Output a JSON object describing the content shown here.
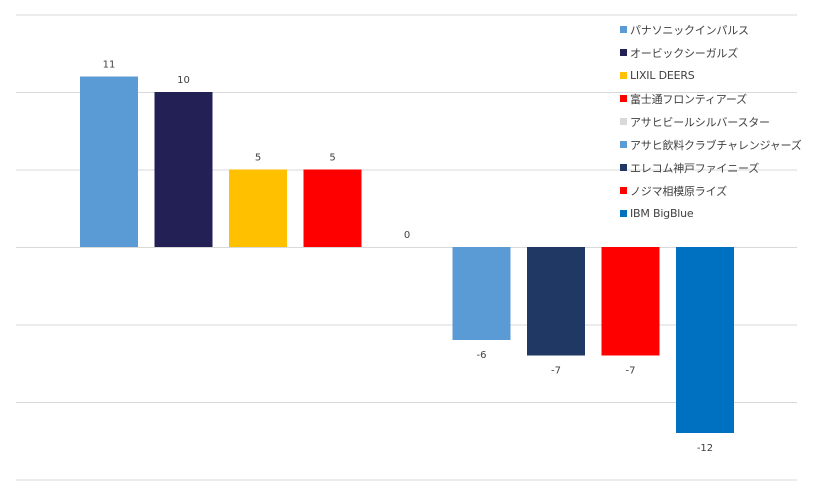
{
  "chart_data": {
    "type": "bar",
    "title": "",
    "xlabel": "",
    "ylabel": "",
    "ylim": [
      -15,
      15
    ],
    "grid": true,
    "legend_position": "top-right",
    "categories": [
      "パナソニックインパルス",
      "オービックシーガルズ",
      "LIXIL DEERS",
      "富士通フロンティアーズ",
      "アサヒビールシルバースター",
      "アサヒ飲料クラブチャレンジャーズ",
      "エレコム神戸ファイニーズ",
      "ノジマ相模原ライズ",
      "IBM BigBlue"
    ],
    "values": [
      11,
      10,
      5,
      5,
      0,
      -6,
      -7,
      -7,
      -12
    ],
    "data_labels": [
      "11",
      "10",
      "5",
      "5",
      "0",
      "-6",
      "-7",
      "-7",
      "-12"
    ],
    "colors": [
      "#5b9bd5",
      "#222055",
      "#ffc000",
      "#ff0000",
      "#d9d9d9",
      "#5b9bd5",
      "#203864",
      "#ff0000",
      "#0070c0"
    ]
  }
}
